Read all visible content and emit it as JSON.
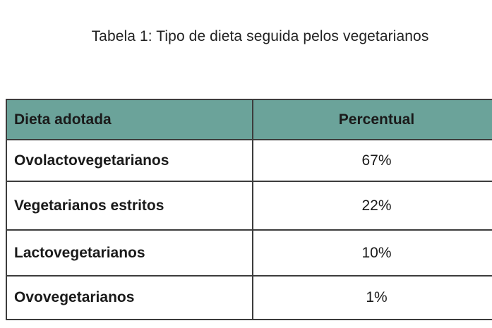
{
  "caption": "Tabela 1: Tipo de dieta seguida pelos vegetarianos",
  "table": {
    "headers": [
      "Dieta adotada",
      "Percentual"
    ],
    "rows": [
      {
        "diet": "Ovolactovegetarianos",
        "percent": "67%"
      },
      {
        "diet": "Vegetarianos estritos",
        "percent": "22%"
      },
      {
        "diet": "Lactovegetarianos",
        "percent": "10%"
      },
      {
        "diet": "Ovovegetarianos",
        "percent": "1%"
      }
    ]
  },
  "colors": {
    "header_background": "#6ba39a",
    "border": "#3c3c3c"
  }
}
